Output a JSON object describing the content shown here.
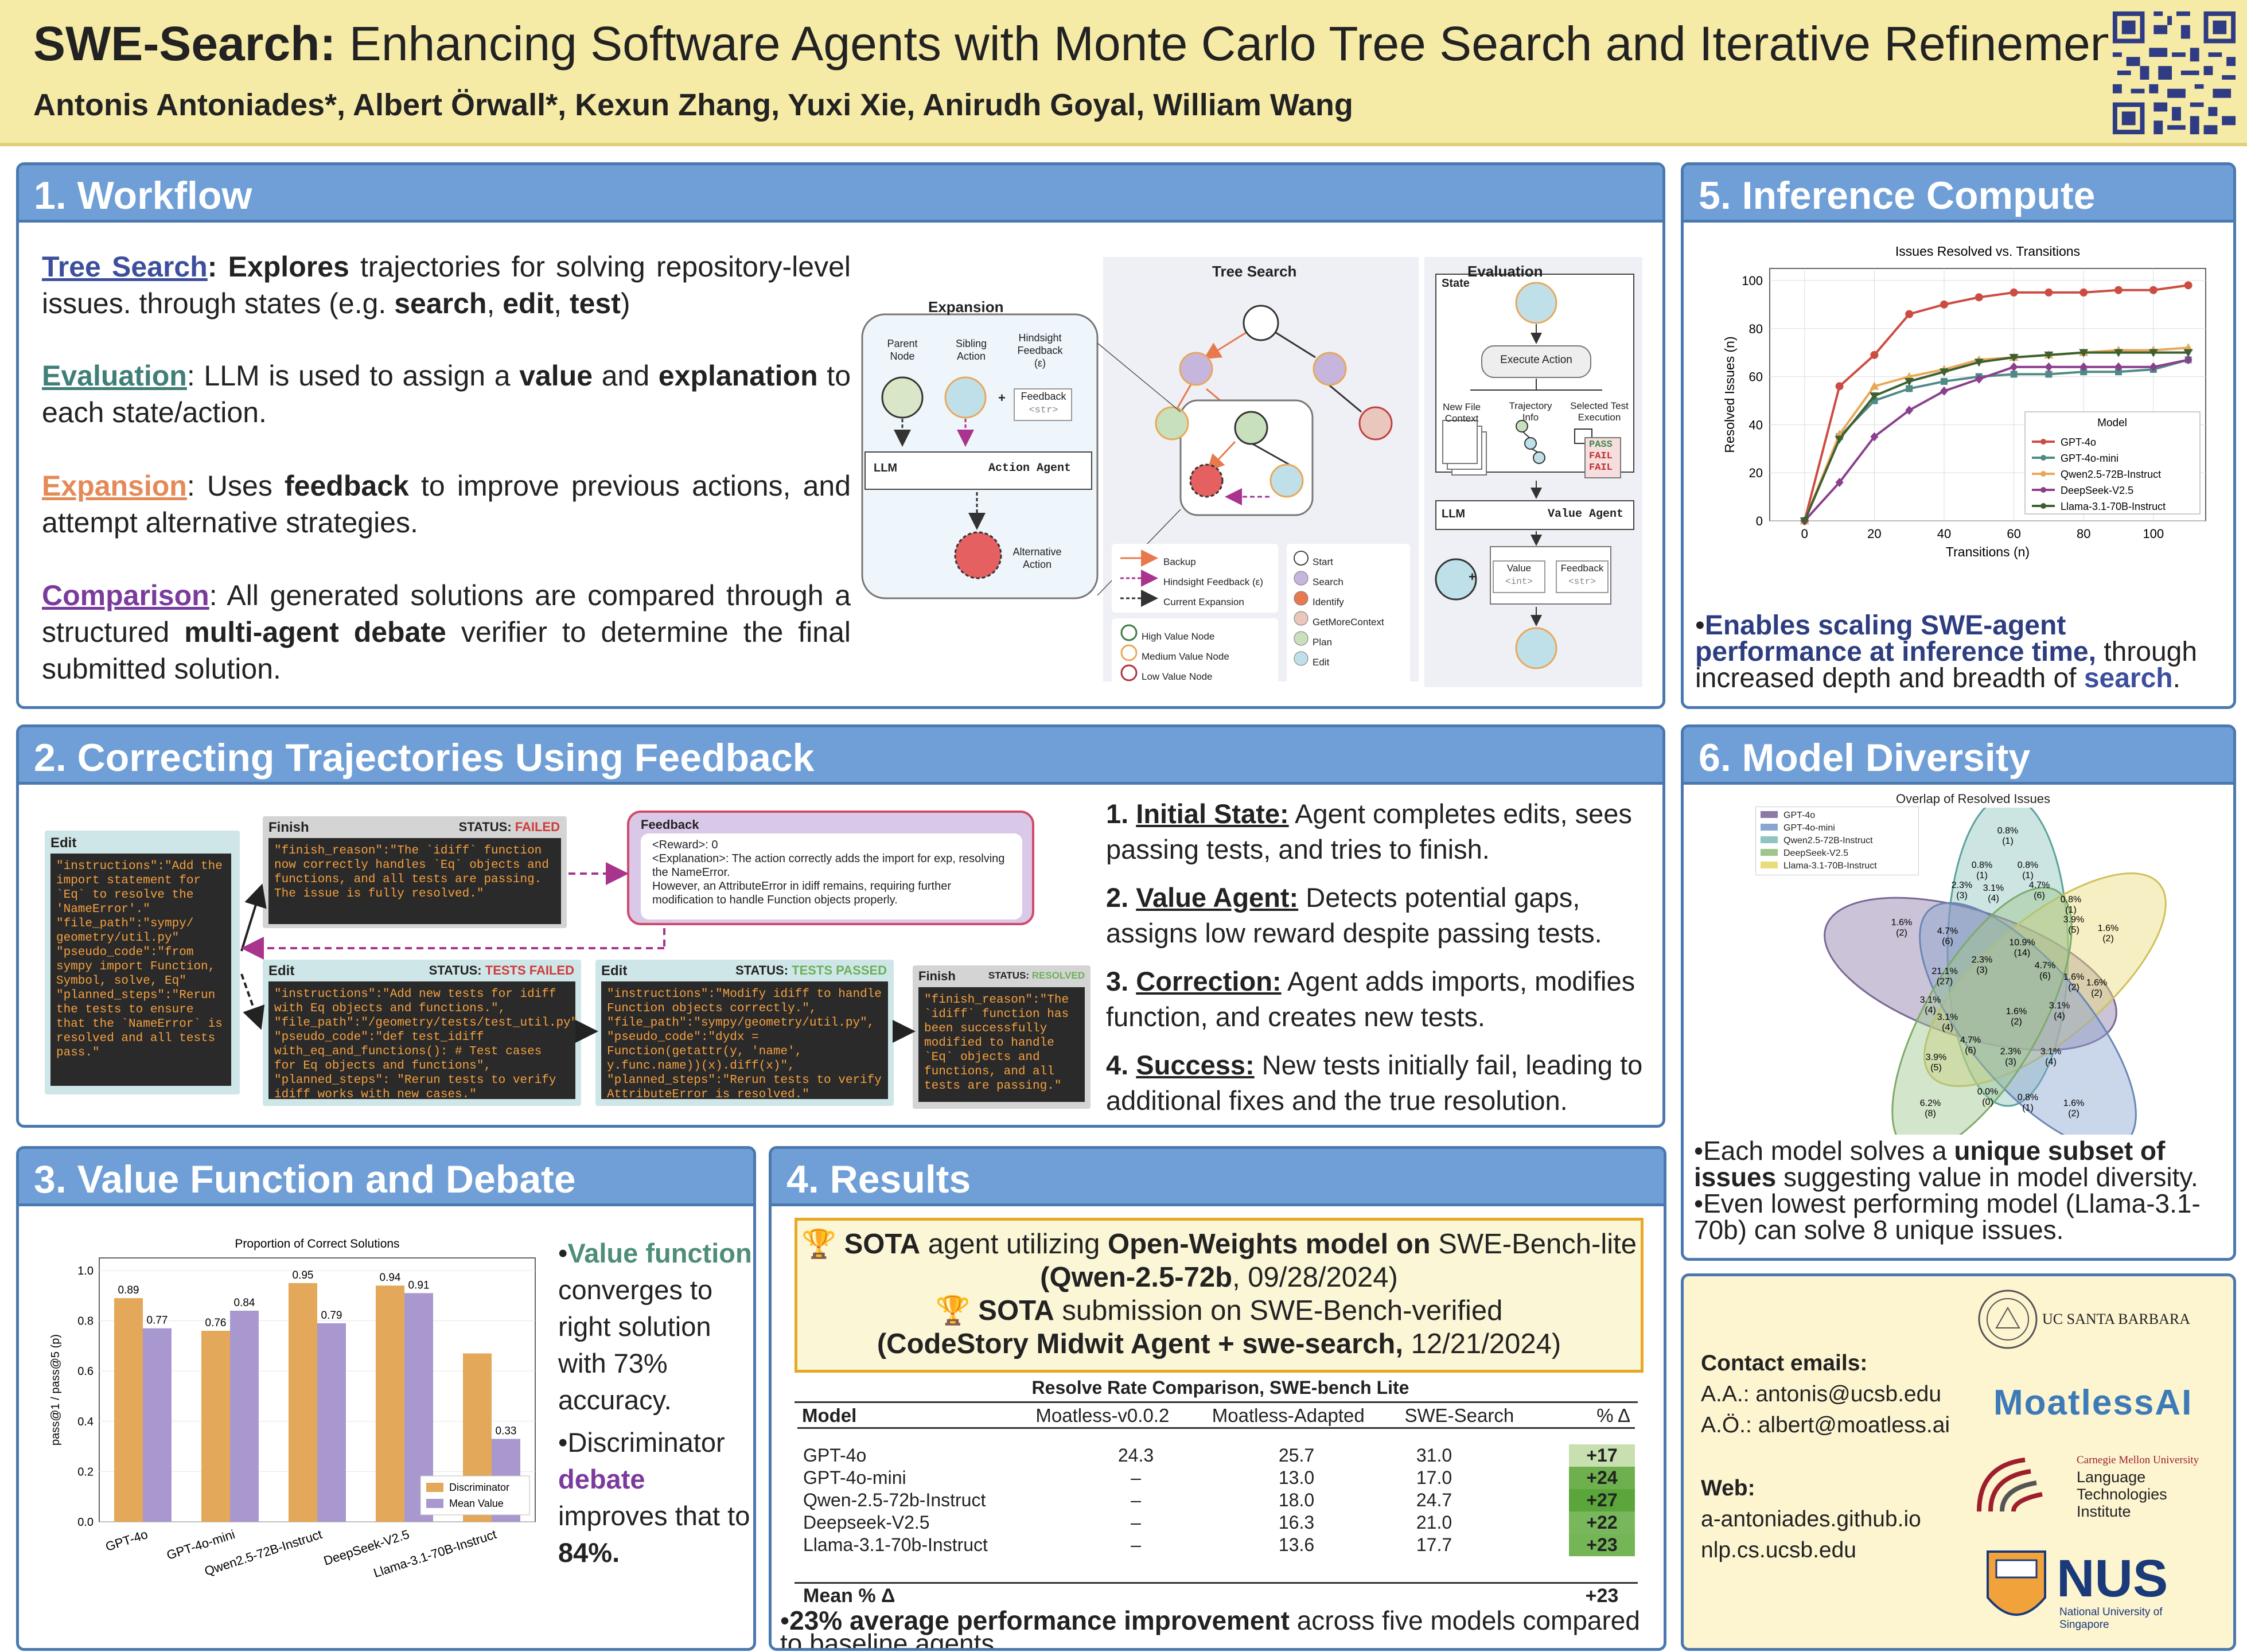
{
  "header": {
    "title_bold": "SWE-Search:",
    "title_rest": " Enhancing Software Agents with Monte Carlo Tree Search and Iterative Refinement",
    "authors": "Antonis Antoniades*, Albert Örwall*, Kexun Zhang, Yuxi Xie, Anirudh Goyal, William Wang"
  },
  "workflow": {
    "title": "1. Workflow",
    "tree_search_label": "Tree Search",
    "tree_search_text_a": ": ",
    "explores": "Explores",
    "tree_search_text_b": " trajectories for solving repository-level issues. through states (e.g. ",
    "search": "search",
    "edit": "edit",
    "test": "test",
    "evaluation_label": "Evaluation",
    "evaluation_text_a": ": LLM is used to assign a ",
    "value": "value",
    "and": " and ",
    "explanation": "explanation",
    "evaluation_text_b": " to each state/action.",
    "expansion_label": "Expansion",
    "expansion_text_a": ": Uses ",
    "feedback": "feedback",
    "expansion_text_b": " to improve previous actions, and attempt alternative strategies.",
    "comparison_label": "Comparison",
    "comparison_text_a": ": All generated solutions are compared through a structured ",
    "debate": "multi-agent debate",
    "comparison_text_b": " verifier to determine the final submitted solution.",
    "diagram": {
      "expansion_title": "Expansion",
      "parent_node": "Parent Node",
      "sibling_action": "Sibling Action",
      "hindsight_feedback": "Hindsight Feedback (ε)",
      "feedback": "Feedback",
      "str": "<str>",
      "llm": "LLM",
      "action_agent": "Action Agent",
      "alternative_action": "Alternative Action",
      "tree_search_title": "Tree Search",
      "evaluation_title": "Evaluation",
      "state": "State",
      "execute_action": "Execute Action",
      "new_file_context": "New File Context",
      "trajectory_info": "Trajectory Info",
      "selected_test_execution": "Selected Test Execution",
      "pass": "PASS",
      "fail": "FAIL",
      "value_agent": "Value Agent",
      "value": "Value",
      "int": "<int>",
      "legend_arrows": [
        "Backup",
        "Hindsight Feedback (ε)",
        "Current Expansion"
      ],
      "legend_values": [
        "High Value Node",
        "Medium Value Node",
        "Low Value Node"
      ],
      "legend_actions": [
        "Start",
        "Search",
        "Identify",
        "GetMoreContext",
        "Plan",
        "Edit"
      ],
      "colors": {
        "start": "#ffffff",
        "search": "#c6b6dd",
        "identify": "#e8794f",
        "getmorecontext": "#e9c7bc",
        "plan": "#c9e0bd",
        "edit": "#bfe0e8"
      }
    }
  },
  "inference": {
    "title": "5. Inference Compute",
    "chart_data": {
      "type": "line",
      "title": "Issues Resolved vs. Transitions",
      "xlabel": "Transitions (n)",
      "ylabel": "Resolved Issues (n)",
      "xlim": [
        -10,
        115
      ],
      "ylim": [
        0,
        105
      ],
      "xticks": [
        0,
        20,
        40,
        60,
        80,
        100
      ],
      "yticks": [
        0,
        20,
        40,
        60,
        80,
        100
      ],
      "legend_title": "Model",
      "x": [
        0,
        10,
        20,
        30,
        40,
        50,
        60,
        70,
        80,
        90,
        100,
        110
      ],
      "series": [
        {
          "name": "GPT-4o",
          "color": "#cc4c42",
          "marker": "circle",
          "values": [
            0,
            56,
            69,
            86,
            90,
            93,
            95,
            95,
            95,
            96,
            96,
            98
          ]
        },
        {
          "name": "GPT-4o-mini",
          "color": "#4f8a86",
          "marker": "square",
          "values": [
            0,
            35,
            50,
            55,
            58,
            60,
            61,
            61,
            62,
            62,
            63,
            67
          ]
        },
        {
          "name": "Qwen2.5-72B-Instruct",
          "color": "#e8a85a",
          "marker": "triangle",
          "values": [
            0,
            36,
            56,
            60,
            63,
            67,
            68,
            69,
            70,
            71,
            71,
            72
          ]
        },
        {
          "name": "DeepSeek-V2.5",
          "color": "#8b3f8c",
          "marker": "diamond",
          "values": [
            0,
            16,
            35,
            46,
            54,
            59,
            64,
            64,
            64,
            64,
            64,
            67
          ]
        },
        {
          "name": "Llama-3.1-70B-Instruct",
          "color": "#3e6030",
          "marker": "triangle-down",
          "values": [
            0,
            34,
            52,
            58,
            62,
            66,
            68,
            69,
            70,
            70,
            70,
            70
          ]
        }
      ]
    },
    "bullet_bold": "Enables scaling SWE-agent performance at inference time,",
    "bullet_rest": " through increased depth and breadth of ",
    "bullet_search": "search",
    "bullet_end": "."
  },
  "feedback_panel": {
    "title": "2. Correcting Trajectories Using Feedback",
    "edit1_title": "Edit",
    "edit1_lines": [
      "\"instructions\":\"Add the import statement for `Eq` to resolve the 'NameError'.\"",
      "\"file_path\":\"sympy/ geometry/util.py\"",
      "\"pseudo_code\":\"from sympy import Function, Symbol, solve, Eq\"",
      "\"planned_steps\":\"Rerun the tests to ensure that the `NameError` is resolved and all tests pass.\""
    ],
    "finish1_title": "Finish",
    "status_label": "STATUS: ",
    "failed": "FAILED",
    "finish1_text": "\"finish_reason\":\"The `idiff` function now correctly handles `Eq` objects and functions, and all tests are passing. The issue is fully resolved.\"",
    "feedback_title": "Feedback",
    "feedback_lines": [
      "<Reward>: 0",
      "<Explanation>: The action correctly adds the import for exp, resolving the NameError.",
      "However, an AttributeError in idiff remains, requiring further modification to handle Function objects properly."
    ],
    "edit2_title": "Edit",
    "tests_failed": "TESTS FAILED",
    "edit2_text": "\"instructions\":\"Add new tests for idiff with Eq objects and functions.\", \"file_path\":\"/geometry/tests/test_util.py\", \"pseudo_code\":\"def test_idiff with_eq_and_functions(): # Test cases for Eq objects and functions\", \"planned_steps\": \"Rerun tests to verify idiff works with new cases.\"",
    "edit3_title": "Edit",
    "tests_passed": "TESTS PASSED",
    "edit3_text": "\"instructions\":\"Modify idiff to handle Function objects correctly.\", \"file_path\":\"sympy/geometry/util.py\", \"pseudo_code\":\"dydx = Function(getattr(y, 'name', y.func.name))(x).diff(x)\", \"planned_steps\":\"Rerun tests to verify AttributeError is resolved.\"",
    "finish2_title": "Finish",
    "resolved": "RESOLVED",
    "finish2_text": "\"finish_reason\":\"The `idiff` function has been successfully modified to handle `Eq` objects and functions, and all tests are passing.\"",
    "steps": [
      {
        "num": "1.",
        "label": "Initial State:",
        "text": " Agent completes edits, sees passing tests, and tries to finish."
      },
      {
        "num": "2.",
        "label": "Value Agent:",
        "text": " Detects potential gaps, assigns low reward despite passing tests."
      },
      {
        "num": "3.",
        "label": "Correction:",
        "text": " Agent adds imports, modifies function, and creates new tests."
      },
      {
        "num": "4.",
        "label": "Success:",
        "text": " New tests initially fail, leading to additional fixes and the true resolution."
      }
    ]
  },
  "diversity": {
    "title": "6. Model Diversity",
    "venn_title": "Overlap of Resolved Issues",
    "legend": [
      "GPT-4o",
      "GPT-4o-mini",
      "Qwen2.5-72B-Instruct",
      "DeepSeek-V2.5",
      "Llama-3.1-70B-Instruct"
    ],
    "legend_colors": [
      "#8b7aa6",
      "#8aa5cf",
      "#8fc5c0",
      "#9ec58c",
      "#eadc7a"
    ],
    "regions": [
      "0.8%",
      "(1)",
      "0.8%",
      "(1)",
      "0.8%",
      "(1)",
      "2.3%",
      "(3)",
      "3.1%",
      "(4)",
      "4.7%",
      "(6)",
      "0.8%",
      "(1)",
      "1.6%",
      "(2)",
      "4.7%",
      "(6)",
      "10.9%",
      "(14)",
      "3.9%",
      "(5)",
      "1.6%",
      "(2)",
      "21.1%",
      "(27)",
      "2.3%",
      "(3)",
      "4.7%",
      "(6)",
      "1.6%",
      "(2)",
      "1.6%",
      "(2)",
      "3.1%",
      "(4)",
      "3.1%",
      "(4)",
      "1.6%",
      "(2)",
      "3.1%",
      "(4)",
      "3.9%",
      "(5)",
      "4.7%",
      "(6)",
      "2.3%",
      "(3)",
      "3.1%",
      "(4)",
      "6.2%",
      "(8)",
      "0.0%",
      "(0)",
      "0.8%",
      "(1)",
      "1.6%",
      "(2)"
    ],
    "bullet1_a": "Each model solves a ",
    "bullet1_bold": "unique subset of issues",
    "bullet1_b": " suggesting value in model diversity.",
    "bullet2": "Even lowest performing model (Llama-3.1-70b) can solve 8 unique issues."
  },
  "value_panel": {
    "title": "3. Value Function and Debate",
    "chart_data": {
      "type": "bar",
      "title": "Proportion of Correct Solutions",
      "ylabel": "pass@1 / pass@5 (p)",
      "ylim": [
        0,
        1.05
      ],
      "yticks": [
        0.0,
        0.2,
        0.4,
        0.6,
        0.8,
        1.0
      ],
      "categories": [
        "GPT-4o",
        "GPT-4o-mini",
        "Qwen2.5-72B-Instruct",
        "DeepSeek-V2.5",
        "Llama-3.1-70B-Instruct"
      ],
      "series": [
        {
          "name": "Discriminator",
          "color": "#e3a85a",
          "values": [
            0.89,
            0.76,
            0.95,
            0.94,
            0.67
          ]
        },
        {
          "name": "Mean Value",
          "color": "#a898cf",
          "values": [
            0.77,
            0.84,
            0.79,
            0.91,
            0.33
          ]
        }
      ],
      "labels": [
        [
          "0.89",
          "0.77"
        ],
        [
          "0.76",
          "0.84"
        ],
        [
          "0.95",
          "0.79"
        ],
        [
          "0.94",
          "0.91"
        ],
        [
          "",
          "0.33"
        ]
      ]
    },
    "vf_bold": "Value function",
    "vf_rest": "converges to right solution with 73% accuracy.",
    "disc_a": "Discriminator ",
    "disc_bold": "debate",
    "disc_b": " improves that to ",
    "disc_pct": "84%."
  },
  "results": {
    "title": "4. Results",
    "sota1_a": "SOTA",
    "sota1_b": " agent utilizing ",
    "sota1_c": "Open-Weights model on",
    "sota1_d": " SWE-Bench-lite",
    "sota1_e": "(Qwen-2.5-72b",
    "sota1_f": ", 09/28/2024)",
    "sota2_a": "SOTA",
    "sota2_b": " submission on SWE-Bench-verified",
    "sota2_c": "(CodeStory Midwit Agent + swe-search,",
    "sota2_d": " 12/21/2024)",
    "table_title": "Resolve Rate Comparison, SWE-bench Lite",
    "headers": [
      "Model",
      "Moatless-v0.0.2",
      "Moatless-Adapted",
      "SWE-Search",
      "% Δ"
    ],
    "rows": [
      [
        "GPT-4o",
        "24.3",
        "25.7",
        "31.0",
        "+17"
      ],
      [
        "GPT-4o-mini",
        "–",
        "13.0",
        "17.0",
        "+24"
      ],
      [
        "Qwen-2.5-72b-Instruct",
        "–",
        "18.0",
        "24.7",
        "+27"
      ],
      [
        "Deepseek-V2.5",
        "–",
        "16.3",
        "21.0",
        "+22"
      ],
      [
        "Llama-3.1-70b-Instruct",
        "–",
        "13.6",
        "17.7",
        "+23"
      ]
    ],
    "mean_label": "Mean % Δ",
    "mean_value": "+23",
    "delta_colors": [
      "#c8e0b0",
      "#6fb04e",
      "#5aa63a",
      "#79b75c",
      "#74b556"
    ],
    "bullet_bold": "23% average performance improvement",
    "bullet_rest": " across five models compared to baseline agents."
  },
  "contact": {
    "emails_label": "Contact emails:",
    "aa": "A.A.: antonis@ucsb.edu",
    "ao": "A.Ö.: albert@moatless.ai",
    "web_label": "Web:",
    "web1": "a-antoniades.github.io",
    "web2": "nlp.cs.ucsb.edu",
    "ucsb": "UC SANTA BARBARA",
    "moatless": "MoatlessAI",
    "cmu": "Carnegie Mellon University",
    "lti": "Language Technologies Institute",
    "nus": "NUS",
    "nus_full": "National University of Singapore"
  }
}
